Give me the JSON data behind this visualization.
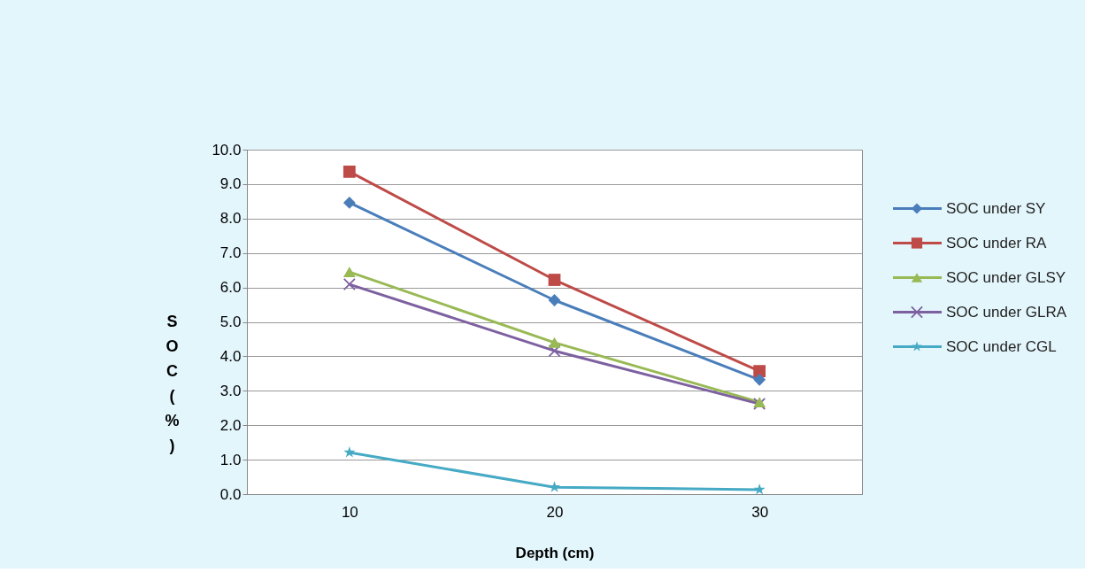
{
  "chart_data": {
    "type": "line",
    "xlabel": "Depth (cm)",
    "ylabel": "SOC (%)",
    "categories": [
      "10",
      "20",
      "30"
    ],
    "series": [
      {
        "name": "SOC under SY",
        "color": "#4a7ebb",
        "marker": "diamond",
        "values": [
          8.46,
          5.63,
          3.32
        ]
      },
      {
        "name": "SOC under RA",
        "color": "#be4b48",
        "marker": "square",
        "values": [
          9.36,
          6.22,
          3.57
        ]
      },
      {
        "name": "SOC under GLSY",
        "color": "#98b954",
        "marker": "triangle",
        "values": [
          6.45,
          4.4,
          2.67
        ]
      },
      {
        "name": "SOC under GLRA",
        "color": "#7d60a0",
        "marker": "cross",
        "values": [
          6.09,
          4.16,
          2.62
        ]
      },
      {
        "name": "SOC under CGL",
        "color": "#46aac5",
        "marker": "star",
        "values": [
          1.21,
          0.2,
          0.13
        ]
      }
    ],
    "ylim": [
      0,
      10
    ],
    "yticks": [
      {
        "value": 0,
        "label": "0.0"
      },
      {
        "value": 1,
        "label": "1.0"
      },
      {
        "value": 2,
        "label": "2.0"
      },
      {
        "value": 3,
        "label": "3.0"
      },
      {
        "value": 4,
        "label": "4.0"
      },
      {
        "value": 5,
        "label": "5.0"
      },
      {
        "value": 6,
        "label": "6.0"
      },
      {
        "value": 7,
        "label": "7.0"
      },
      {
        "value": 8,
        "label": "8.0"
      },
      {
        "value": 9,
        "label": "9.0"
      },
      {
        "value": 10,
        "label": "10.0"
      }
    ],
    "grid": "y",
    "legend": "right",
    "line_style": "solid"
  }
}
